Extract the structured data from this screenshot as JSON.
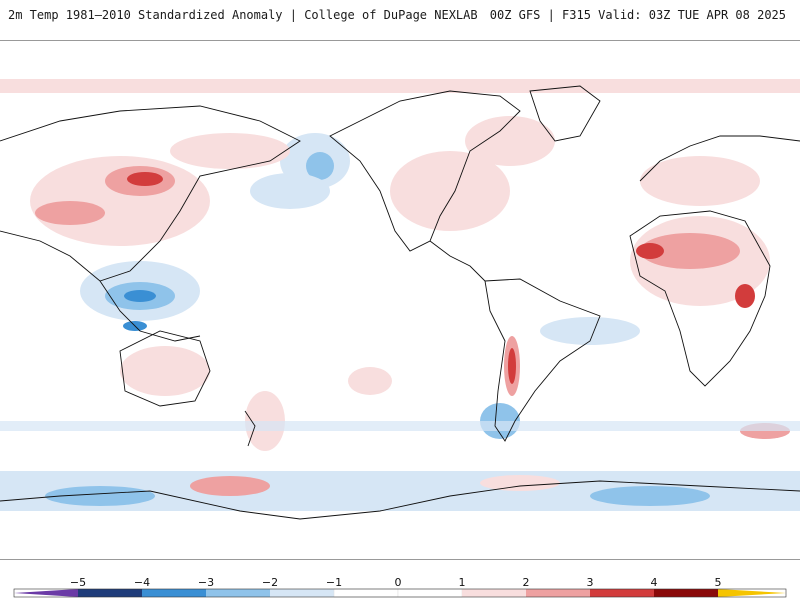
{
  "header": {
    "title_left": "2m Temp 1981–2010 Standardized Anomaly | College of DuPage NEXLAB",
    "title_right": "00Z GFS | F315 Valid: 03Z TUE APR 08 2025"
  },
  "colorbar": {
    "labels": [
      "−5",
      "−4",
      "−3",
      "−2",
      "−1",
      "0",
      "1",
      "2",
      "3",
      "4",
      "5"
    ],
    "colors": [
      "#6a3aa6",
      "#1f3c7a",
      "#3a8fd4",
      "#8fc3ea",
      "#d6e6f5",
      "#ffffff",
      "#f8dede",
      "#eea1a1",
      "#d23c3c",
      "#8a0a0a",
      "#f5c400"
    ]
  },
  "colors": {
    "coast": "#111111",
    "warm_light": "#f8dede",
    "warm_mid": "#eea1a1",
    "warm_strong": "#d23c3c",
    "warm_extreme": "#8a0a0a",
    "cold_light": "#d6e6f5",
    "cold_mid": "#8fc3ea",
    "cold_strong": "#3a8fd4",
    "cold_extreme": "#1f3c7a",
    "cold_max": "#6a3aa6"
  }
}
